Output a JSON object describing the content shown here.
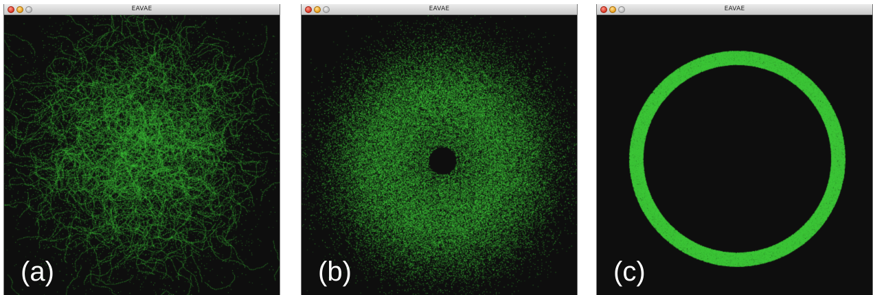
{
  "windows": [
    {
      "title": "EAVAE",
      "label": "(a)",
      "distribution": "cloud",
      "particle_color": "#3fc83a"
    },
    {
      "title": "EAVAE",
      "label": "(b)",
      "distribution": "diffuse-ring",
      "particle_color": "#3fc83a"
    },
    {
      "title": "EAVAE",
      "label": "(c)",
      "distribution": "sharp-ring",
      "particle_color": "#3fc83a"
    }
  ],
  "colors": {
    "background": "#0e0e0e",
    "particle": "#3fc83a"
  }
}
